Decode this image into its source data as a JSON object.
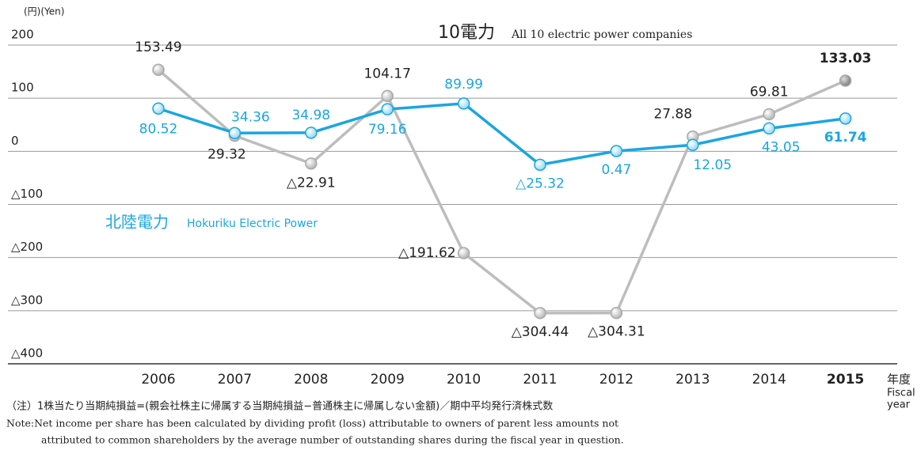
{
  "chart_data": {
    "type": "line",
    "unit_label": "(円)(Yen)",
    "x_label": "年度",
    "x_label_en": [
      "Fiscal",
      "year"
    ],
    "categories": [
      "2006",
      "2007",
      "2008",
      "2009",
      "2010",
      "2011",
      "2012",
      "2013",
      "2014",
      "2015"
    ],
    "series": [
      {
        "name": "10電力",
        "name_en": "All 10 electric power companies",
        "color": "#bdbdbd",
        "values": [
          153.49,
          29.32,
          -22.91,
          104.17,
          -191.62,
          -304.44,
          -304.31,
          27.88,
          69.81,
          133.03
        ],
        "value_labels": [
          "153.49",
          "29.32",
          "△22.91",
          "104.17",
          "△191.62",
          "△304.44",
          "△304.31",
          "27.88",
          "69.81",
          "133.03"
        ]
      },
      {
        "name": "北陸電力",
        "name_en": "Hokuriku Electric Power",
        "color": "#1aa6e0",
        "values": [
          80.52,
          34.36,
          34.98,
          79.16,
          89.99,
          -25.32,
          0.47,
          12.05,
          43.05,
          61.74
        ],
        "value_labels": [
          "80.52",
          "34.36",
          "34.98",
          "79.16",
          "89.99",
          "△25.32",
          "0.47",
          "12.05",
          "43.05",
          "61.74"
        ]
      }
    ],
    "ylim": [
      -400,
      200
    ],
    "yticks": [
      {
        "value": -400,
        "label": "△400"
      },
      {
        "value": -300,
        "label": "△300"
      },
      {
        "value": -200,
        "label": "△200"
      },
      {
        "value": -100,
        "label": "△100"
      },
      0,
      100,
      200
    ],
    "grid": true,
    "notes": [
      "（注）1株当たり当期純損益=(親会社株主に帰属する当期純損益−普通株主に帰属しない金額)／期中平均発行済株式数",
      "Note:Net income per share has been calculated by dividing profit (loss) attributable to owners of parent less amounts not",
      "attributed to common shareholders by the average number of outstanding shares during the fiscal year in question."
    ]
  }
}
